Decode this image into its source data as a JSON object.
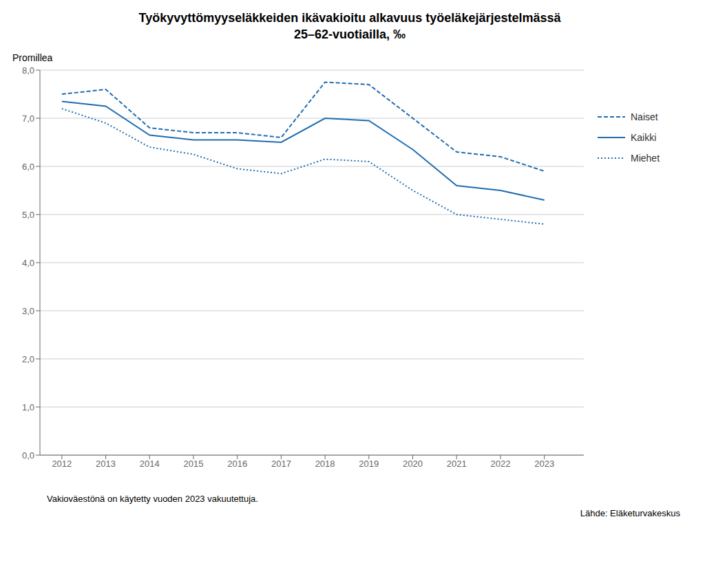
{
  "chart_data": {
    "type": "line",
    "title": "Työkyvyttömyyseläkkeiden ikävakioitu alkavuus työeläkejärjestelmässä",
    "subtitle": "25–62-vuotiailla, ‰",
    "y_label": "Promillea",
    "annotations": [
      "Vakioväestönä on käytetty vuoden 2023 vakuutettuja.",
      "Lähde: Eläketurvakeskus"
    ],
    "x": [
      2012,
      2013,
      2014,
      2015,
      2016,
      2017,
      2018,
      2019,
      2020,
      2021,
      2022,
      2023
    ],
    "series": [
      {
        "name": "Naiset",
        "color": "#1F6CB0",
        "line_style": "dashed",
        "values": [
          7.5,
          7.6,
          6.8,
          6.7,
          6.7,
          6.6,
          7.75,
          7.7,
          7.0,
          6.3,
          6.2,
          5.9
        ]
      },
      {
        "name": "Kaikki",
        "color": "#1F6CB0",
        "line_style": "solid",
        "values": [
          7.35,
          7.25,
          6.65,
          6.55,
          6.55,
          6.5,
          7.0,
          6.95,
          6.35,
          5.6,
          5.5,
          5.3
        ]
      },
      {
        "name": "Miehet",
        "color": "#1F6CB0",
        "line_style": "dotted",
        "values": [
          7.2,
          6.9,
          6.4,
          6.25,
          5.95,
          5.85,
          6.15,
          6.1,
          5.5,
          5.0,
          4.9,
          4.8
        ]
      }
    ],
    "xlim": [
      2011.5,
      2023.9
    ],
    "xticks": [
      2012,
      2013,
      2014,
      2015,
      2016,
      2017,
      2018,
      2019,
      2020,
      2021,
      2022,
      2023
    ],
    "ylim": [
      0.0,
      8.0
    ],
    "yticks": [
      {
        "value": 0,
        "label": "0,0"
      },
      {
        "value": 1,
        "label": "1,0"
      },
      {
        "value": 2,
        "label": "2,0"
      },
      {
        "value": 3,
        "label": "3,0"
      },
      {
        "value": 4,
        "label": "4,0"
      },
      {
        "value": 5,
        "label": "5,0"
      },
      {
        "value": 6,
        "label": "6,0"
      },
      {
        "value": 7,
        "label": "7,0"
      },
      {
        "value": 8,
        "label": "8,0"
      }
    ],
    "grid": true,
    "legend": "right"
  }
}
